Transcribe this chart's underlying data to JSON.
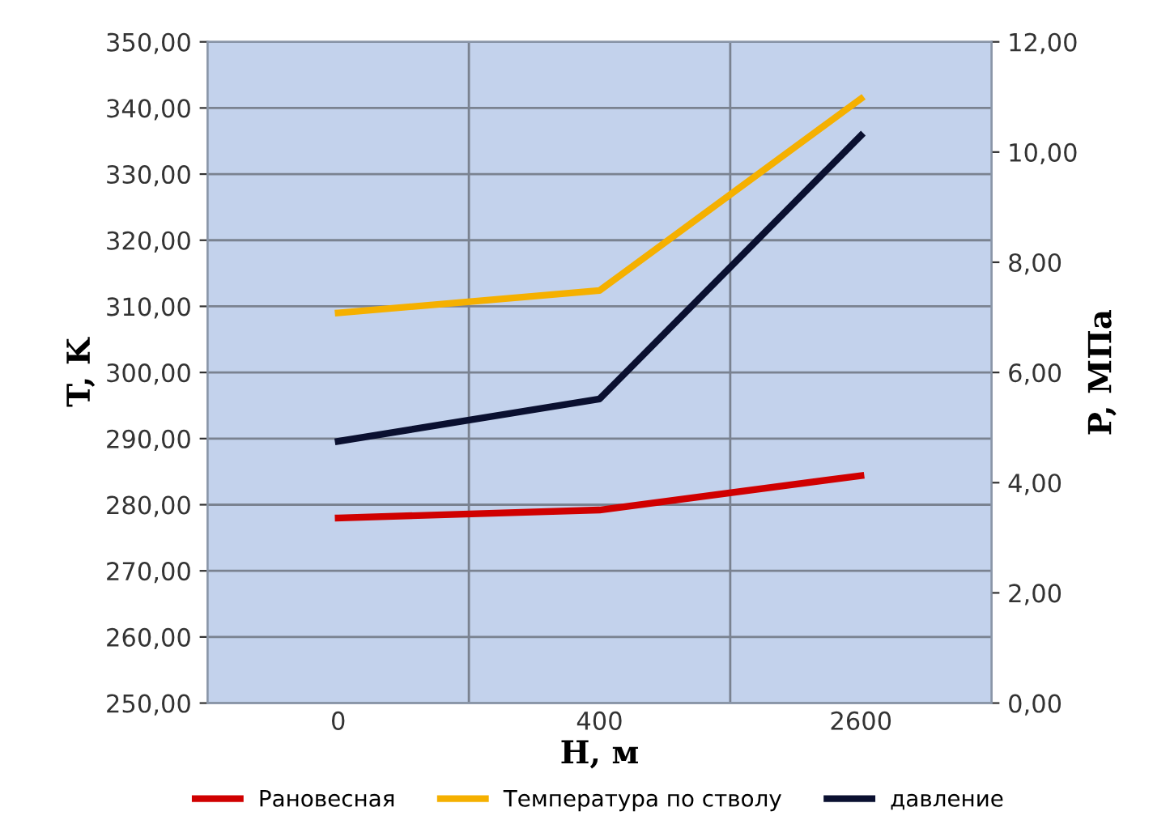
{
  "chart_data": {
    "type": "line",
    "xlabel": "H, м",
    "ylabel": "T, K",
    "y2label": "P, МПа",
    "categories": [
      "0",
      "400",
      "2600"
    ],
    "series": [
      {
        "name": "Рановесная",
        "color": "#d00000",
        "values": [
          278.0,
          279.2,
          284.4
        ]
      },
      {
        "name": "Температура по стволу",
        "color": "#f5b000",
        "values": [
          309.0,
          312.4,
          341.4
        ]
      },
      {
        "name": "давление",
        "color": "#0a1030",
        "values": [
          4.75,
          5.52,
          10.3
        ],
        "axis": "y2"
      }
    ],
    "ylim": [
      250,
      350
    ],
    "yticks": [
      {
        "value": 250,
        "label": "250,00"
      },
      {
        "value": 260,
        "label": "260,00"
      },
      {
        "value": 270,
        "label": "270,00"
      },
      {
        "value": 280,
        "label": "280,00"
      },
      {
        "value": 290,
        "label": "290,00"
      },
      {
        "value": 300,
        "label": "300,00"
      },
      {
        "value": 310,
        "label": "310,00"
      },
      {
        "value": 320,
        "label": "320,00"
      },
      {
        "value": 330,
        "label": "330,00"
      },
      {
        "value": 340,
        "label": "340,00"
      },
      {
        "value": 350,
        "label": "350,00"
      }
    ],
    "y2lim": [
      0,
      12
    ],
    "y2ticks": [
      {
        "value": 0,
        "label": "0,00"
      },
      {
        "value": 2,
        "label": "2,00"
      },
      {
        "value": 4,
        "label": "4,00"
      },
      {
        "value": 6,
        "label": "6,00"
      },
      {
        "value": 8,
        "label": "8,00"
      },
      {
        "value": 10,
        "label": "10,00"
      },
      {
        "value": 12,
        "label": "12,00"
      }
    ],
    "grid": true,
    "legend": "bottom",
    "marker": "none",
    "line_style": "solid"
  }
}
